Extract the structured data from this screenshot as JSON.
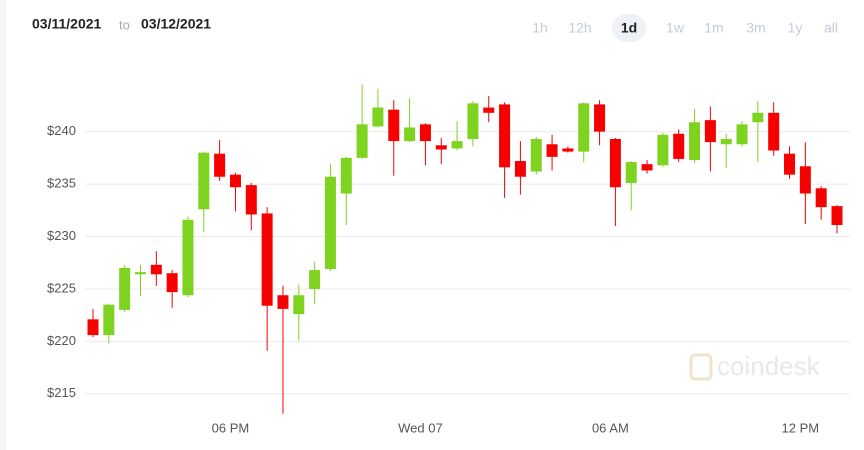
{
  "controls": {
    "from": "03/11/2021",
    "separator": "to",
    "to": "03/12/2021",
    "ranges": [
      "1h",
      "12h",
      "1d",
      "1w",
      "1m",
      "3m",
      "1y",
      "all"
    ],
    "active": 2
  },
  "watermark": "coindesk",
  "chart_data": {
    "type": "candlestick",
    "categories": [
      null,
      null,
      null,
      null,
      null,
      null,
      null,
      null,
      null,
      "06 PM",
      null,
      null,
      null,
      null,
      null,
      null,
      null,
      null,
      null,
      null,
      null,
      "Wed 07",
      null,
      null,
      null,
      null,
      null,
      null,
      null,
      null,
      null,
      null,
      null,
      "06 AM",
      null,
      null,
      null,
      null,
      null,
      null,
      null,
      null,
      null,
      null,
      null,
      "12 PM",
      null,
      null
    ],
    "open": [
      222.1,
      220.6,
      223.0,
      226.4,
      227.3,
      226.5,
      224.4,
      232.6,
      237.9,
      235.9,
      234.9,
      232.2,
      224.4,
      222.6,
      225.0,
      226.9,
      234.1,
      237.5,
      240.5,
      242.1,
      239.1,
      240.7,
      238.7,
      238.4,
      239.3,
      242.3,
      242.6,
      237.2,
      236.2,
      238.8,
      238.4,
      238.1,
      242.6,
      239.3,
      235.1,
      236.9,
      236.8,
      239.8,
      237.3,
      241.1,
      238.8,
      238.8,
      240.9,
      241.8,
      237.9,
      236.7,
      234.6,
      232.9
    ],
    "high": [
      223.1,
      223.6,
      227.3,
      227.3,
      228.6,
      226.8,
      231.9,
      238.1,
      239.2,
      236.1,
      235.1,
      232.8,
      225.3,
      225.4,
      227.6,
      236.9,
      237.6,
      244.5,
      244.1,
      243.0,
      243.2,
      240.8,
      239.4,
      241.0,
      242.9,
      243.4,
      242.8,
      239.1,
      239.5,
      239.7,
      238.6,
      242.8,
      243.0,
      239.4,
      237.2,
      237.3,
      239.9,
      240.2,
      242.2,
      242.4,
      239.8,
      241.0,
      242.9,
      242.8,
      238.6,
      239.0,
      234.8,
      233.0
    ],
    "low": [
      220.4,
      219.8,
      222.8,
      224.3,
      225.3,
      223.2,
      224.2,
      230.4,
      235.3,
      232.4,
      230.6,
      219.1,
      213.1,
      220.1,
      223.6,
      226.7,
      231.1,
      237.4,
      240.4,
      235.8,
      239.0,
      236.8,
      236.9,
      238.2,
      238.6,
      240.9,
      233.7,
      234.0,
      235.9,
      236.3,
      238.0,
      237.1,
      238.7,
      231.0,
      232.5,
      236.0,
      236.6,
      237.1,
      237.0,
      236.2,
      236.5,
      238.6,
      237.1,
      237.7,
      235.5,
      231.2,
      231.6,
      230.3
    ],
    "close": [
      220.6,
      223.5,
      227.0,
      226.6,
      226.4,
      224.7,
      231.6,
      238.0,
      235.7,
      234.7,
      232.1,
      223.4,
      223.1,
      224.4,
      226.8,
      235.7,
      237.5,
      240.7,
      242.3,
      239.1,
      240.4,
      239.1,
      238.3,
      239.1,
      242.7,
      241.8,
      236.6,
      235.7,
      239.3,
      237.6,
      238.1,
      242.7,
      240.0,
      234.7,
      237.1,
      236.3,
      239.7,
      237.4,
      240.9,
      239.0,
      239.3,
      240.7,
      241.8,
      238.2,
      235.9,
      234.1,
      232.8,
      231.1
    ],
    "up_color": "#7ed321",
    "down_color": "#f70000",
    "ylim": [
      212.5,
      245.5
    ],
    "yticks": [
      {
        "value": 215,
        "label": "$215"
      },
      {
        "value": 220,
        "label": "$220"
      },
      {
        "value": 225,
        "label": "$225"
      },
      {
        "value": 230,
        "label": "$230"
      },
      {
        "value": 235,
        "label": "$235"
      },
      {
        "value": 240,
        "label": "$240"
      }
    ],
    "grid": true
  }
}
